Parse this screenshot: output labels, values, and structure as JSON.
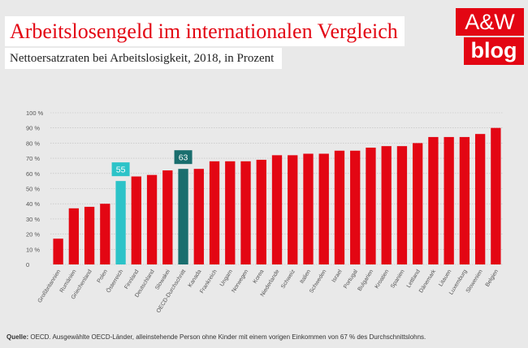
{
  "header": {
    "title": "Arbeitslosengeld im internationalen Vergleich",
    "subtitle": "Nettoersatzraten bei Arbeitslosigkeit, 2018, in Prozent"
  },
  "logo": {
    "line1": "A&W",
    "line2": "blog"
  },
  "source": {
    "label": "Quelle:",
    "text": " OECD. Ausgewählte OECD-Länder, alleinstehende Person ohne Kinder mit einem vorigen Einkommen von 67 % des Durchschnittslohns."
  },
  "colors": {
    "bar": "#e30613",
    "highlight_austria": "#2cc3c8",
    "highlight_oecd": "#1a6e6e",
    "brand": "#e30613"
  },
  "chart_data": {
    "type": "bar",
    "categories": [
      "Großbritannien",
      "Rumänien",
      "Griechenland",
      "Polen",
      "Österreich",
      "Finnland",
      "Deutschland",
      "Slowakei",
      "OECD-Durchschnitt",
      "Kanada",
      "Frankreich",
      "Ungarn",
      "Norwegen",
      "Korea",
      "Niederlande",
      "Schweiz",
      "Italien",
      "Schweden",
      "Israel",
      "Portugal",
      "Bulgarien",
      "Kroatien",
      "Spanien",
      "Lettland",
      "Dänemark",
      "Litauen",
      "Luxemburg",
      "Slowenien",
      "Belgien"
    ],
    "values": [
      17,
      37,
      38,
      40,
      55,
      58,
      59,
      62,
      63,
      63,
      68,
      68,
      68,
      69,
      72,
      72,
      73,
      73,
      75,
      75,
      77,
      78,
      78,
      80,
      84,
      84,
      84,
      86,
      90
    ],
    "highlight": {
      "Österreich": {
        "color": "#2cc3c8",
        "label": "55"
      },
      "OECD-Durchschnitt": {
        "color": "#1a6e6e",
        "label": "63"
      }
    },
    "y_ticks": [
      "0",
      "10 %",
      "20 %",
      "30 %",
      "40 %",
      "50 %",
      "60 %",
      "70 %",
      "80 %",
      "90 %",
      "100 %"
    ],
    "ylim": [
      0,
      100
    ],
    "grid": true
  }
}
